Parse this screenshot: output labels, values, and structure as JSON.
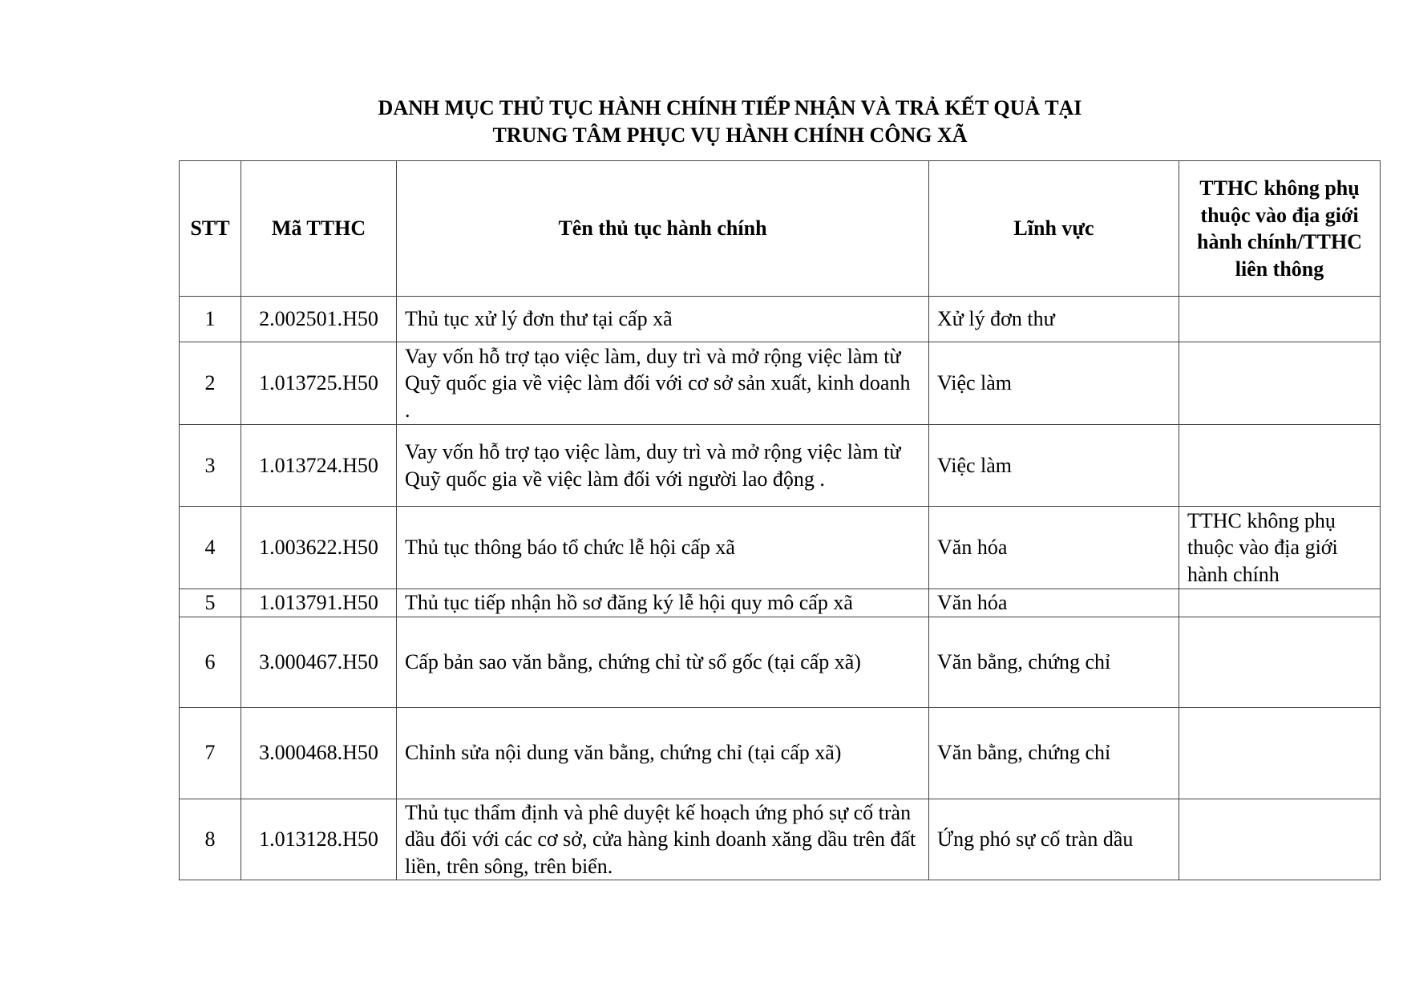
{
  "title": {
    "line1": "DANH MỤC THỦ TỤC HÀNH CHÍNH TIẾP NHẬN VÀ TRẢ KẾT QUẢ TẠI",
    "line2": "TRUNG TÂM PHỤC VỤ HÀNH CHÍNH CÔNG XÃ"
  },
  "table": {
    "headers": [
      "STT",
      "Mã TTHC",
      "Tên thủ tục hành chính",
      "Lĩnh vực",
      "TTHC không phụ thuộc vào địa giới hành chính/TTHC liên thông"
    ],
    "rows": [
      {
        "stt": "1",
        "code": "2.002501.H50",
        "name": "Thủ tục xử lý đơn thư tại cấp xã",
        "field": "Xử lý đơn thư",
        "note": ""
      },
      {
        "stt": "2",
        "code": "1.013725.H50",
        "name": "Vay vốn hỗ trợ tạo việc làm, duy trì và mở rộng việc làm từ Quỹ quốc gia về việc làm đối với cơ sở sản xuất, kinh doanh .",
        "field": "Việc làm",
        "note": ""
      },
      {
        "stt": "3",
        "code": "1.013724.H50",
        "name": "Vay vốn hỗ trợ tạo việc làm, duy trì và mở rộng việc làm từ Quỹ quốc gia về việc làm đối với người lao động .",
        "field": "Việc làm",
        "note": ""
      },
      {
        "stt": "4",
        "code": "1.003622.H50",
        "name": "Thủ tục thông báo tổ chức lễ hội cấp xã",
        "field": "Văn hóa",
        "note": "TTHC không phụ thuộc vào địa giới hành chính"
      },
      {
        "stt": "5",
        "code": "1.013791.H50",
        "name": "Thủ tục tiếp nhận hồ sơ đăng ký lễ hội quy mô cấp xã",
        "field": "Văn hóa",
        "note": ""
      },
      {
        "stt": "6",
        "code": "3.000467.H50",
        "name": "Cấp bản sao văn bằng, chứng chỉ từ sổ gốc (tại cấp xã)",
        "field": "Văn bằng, chứng chỉ",
        "note": ""
      },
      {
        "stt": "7",
        "code": "3.000468.H50",
        "name": "Chỉnh sửa nội dung văn bằng, chứng chỉ (tại cấp xã)",
        "field": "Văn bằng, chứng chỉ",
        "note": ""
      },
      {
        "stt": "8",
        "code": "1.013128.H50",
        "name": "Thủ tục thẩm định và phê duyệt kế hoạch ứng phó sự cố tràn dầu đối với các cơ sở, cửa hàng kinh doanh xăng dầu trên đất liền, trên sông, trên biển.",
        "field": "Ứng phó sự cố tràn dầu",
        "note": ""
      }
    ]
  }
}
